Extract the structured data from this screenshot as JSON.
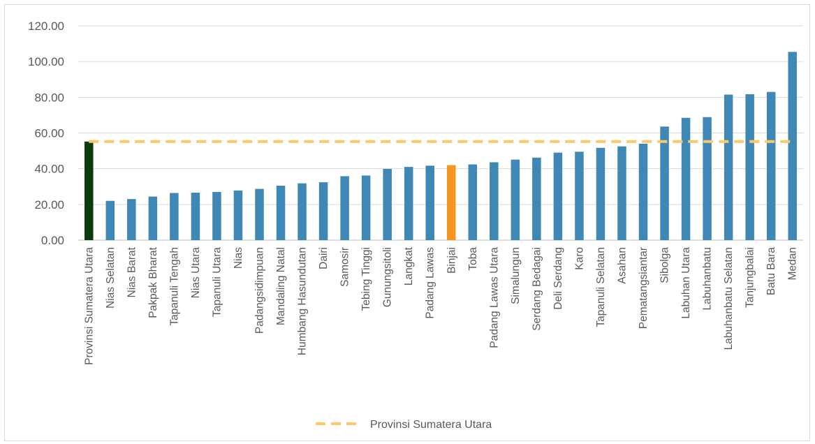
{
  "chart_data": {
    "type": "bar",
    "categories": [
      "Provinsi Sumatera Utara",
      "Nias Selatan",
      "Nias Barat",
      "Pakpak Bharat",
      "Tapanuli Tengah",
      "Nias Utara",
      "Tapanuli Utara",
      "Nias",
      "Padangsidimpuan",
      "Mandaling Natal",
      "Humbang Hasundutan",
      "Dairi",
      "Samosir",
      "Tebing Tinggi",
      "Gunungsitoli",
      "Langkat",
      "Padang Lawas",
      "Binjai",
      "Toba",
      "Padang Lawas Utara",
      "Simalungun",
      "Serdang Bedagai",
      "Deli Serdang",
      "Karo",
      "Tapanuli Selatan",
      "Asahan",
      "Pematangsiantar",
      "Sibolga",
      "Labuhan Utara",
      "Labuhanbatu",
      "Labuhanbatu Selatan",
      "Tanjungbalai",
      "Batu Bara",
      "Medan"
    ],
    "values": [
      55.2,
      22.0,
      23.0,
      24.4,
      26.4,
      26.6,
      27.0,
      27.8,
      28.7,
      30.5,
      31.8,
      32.4,
      35.8,
      36.2,
      39.9,
      41.0,
      41.7,
      42.0,
      42.4,
      43.6,
      45.1,
      46.2,
      49.0,
      49.5,
      51.7,
      52.5,
      54.0,
      63.6,
      68.5,
      68.9,
      81.5,
      81.7,
      83.0,
      105.4
    ],
    "bar_colors": {
      "province": "#0b3a0b",
      "highlight": "#f7961e",
      "default": "#3f88b5"
    },
    "highlight_category": "Binjai",
    "reference_line": {
      "name": "Provinsi Sumatera Utara",
      "value": 55.2,
      "color": "#ffc766",
      "style": "dashed"
    },
    "y_ticks": [
      "0.00",
      "20.00",
      "40.00",
      "60.00",
      "80.00",
      "100.00",
      "120.00"
    ],
    "ylim": [
      0,
      120
    ],
    "grid": true,
    "legend_position": "bottom",
    "title": "",
    "xlabel": "",
    "ylabel": ""
  },
  "legend": {
    "label": "Provinsi Sumatera Utara"
  }
}
